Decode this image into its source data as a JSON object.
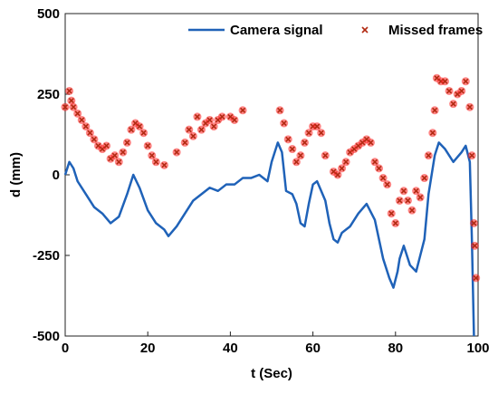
{
  "chart_data": {
    "type": "line",
    "xlabel": "t (Sec)",
    "ylabel": "d (mm)",
    "xlim": [
      0,
      100
    ],
    "xticks": [
      0,
      20,
      40,
      60,
      80,
      100
    ],
    "ylim": [
      -500,
      500
    ],
    "yticks": [
      -500,
      -250,
      0,
      250,
      500
    ],
    "legend": "upper right",
    "grid": false,
    "series": [
      {
        "name": "Camera signal",
        "color": "#1f62b8",
        "style": "line",
        "x": [
          0,
          1,
          2,
          3,
          5,
          7,
          9,
          11,
          13,
          15,
          16.5,
          18,
          20,
          22,
          24,
          25,
          27,
          29,
          31,
          33,
          35,
          37,
          39,
          41,
          43,
          45,
          47,
          49,
          50,
          51.5,
          52.5,
          53.5,
          55,
          56,
          57,
          58,
          59,
          60,
          61,
          62,
          63,
          64,
          65,
          66,
          67,
          69,
          71,
          73,
          75,
          76,
          77,
          78.5,
          79.5,
          80.5,
          81,
          82,
          83.5,
          85,
          86,
          87,
          88,
          89.5,
          90.5,
          92,
          94,
          96,
          97,
          98,
          98.5,
          99
        ],
        "values": [
          0,
          40,
          20,
          -20,
          -60,
          -100,
          -120,
          -150,
          -130,
          -60,
          0,
          -40,
          -110,
          -150,
          -170,
          -190,
          -160,
          -120,
          -80,
          -60,
          -40,
          -50,
          -30,
          -30,
          -10,
          -10,
          0,
          -20,
          40,
          100,
          70,
          -50,
          -60,
          -90,
          -150,
          -160,
          -90,
          -30,
          -20,
          -50,
          -80,
          -150,
          -200,
          -210,
          -180,
          -160,
          -120,
          -90,
          -140,
          -200,
          -260,
          -320,
          -350,
          -300,
          -260,
          -220,
          -280,
          -300,
          -250,
          -200,
          -60,
          60,
          100,
          80,
          40,
          70,
          90,
          40,
          -200,
          -500
        ]
      },
      {
        "name": "Missed frames",
        "color": "#b22a12",
        "style": "marker",
        "x": [
          0,
          1,
          1.5,
          2,
          3,
          4,
          5,
          6,
          7,
          8,
          9,
          10,
          11,
          12,
          13,
          14,
          15,
          16,
          17,
          18,
          19,
          20,
          21,
          22,
          24,
          27,
          29,
          30,
          31,
          32,
          33,
          34,
          35,
          36,
          37,
          38,
          40,
          41,
          43,
          52,
          53,
          54,
          55,
          56,
          57,
          58,
          59,
          60,
          61,
          62,
          63,
          65,
          66,
          67,
          68,
          69,
          70,
          71,
          72,
          73,
          74,
          75,
          76,
          77,
          78,
          79,
          80,
          81,
          82,
          83,
          84,
          85,
          86,
          87,
          88,
          89,
          89.5,
          90,
          91,
          92,
          93,
          94,
          95,
          96,
          97,
          98,
          98.5,
          99,
          99.2,
          99.5
        ],
        "values": [
          210,
          260,
          230,
          210,
          190,
          170,
          150,
          130,
          110,
          90,
          80,
          90,
          50,
          60,
          40,
          70,
          100,
          140,
          160,
          150,
          130,
          90,
          60,
          40,
          30,
          70,
          100,
          140,
          120,
          180,
          140,
          160,
          170,
          150,
          170,
          180,
          180,
          170,
          200,
          200,
          160,
          110,
          80,
          40,
          60,
          100,
          130,
          150,
          150,
          130,
          60,
          10,
          0,
          20,
          40,
          70,
          80,
          90,
          100,
          110,
          100,
          40,
          20,
          -10,
          -30,
          -120,
          -150,
          -80,
          -50,
          -80,
          -110,
          -50,
          -70,
          -10,
          60,
          130,
          200,
          300,
          290,
          290,
          260,
          220,
          250,
          260,
          290,
          210,
          60,
          -150,
          -220,
          -320
        ]
      }
    ]
  }
}
